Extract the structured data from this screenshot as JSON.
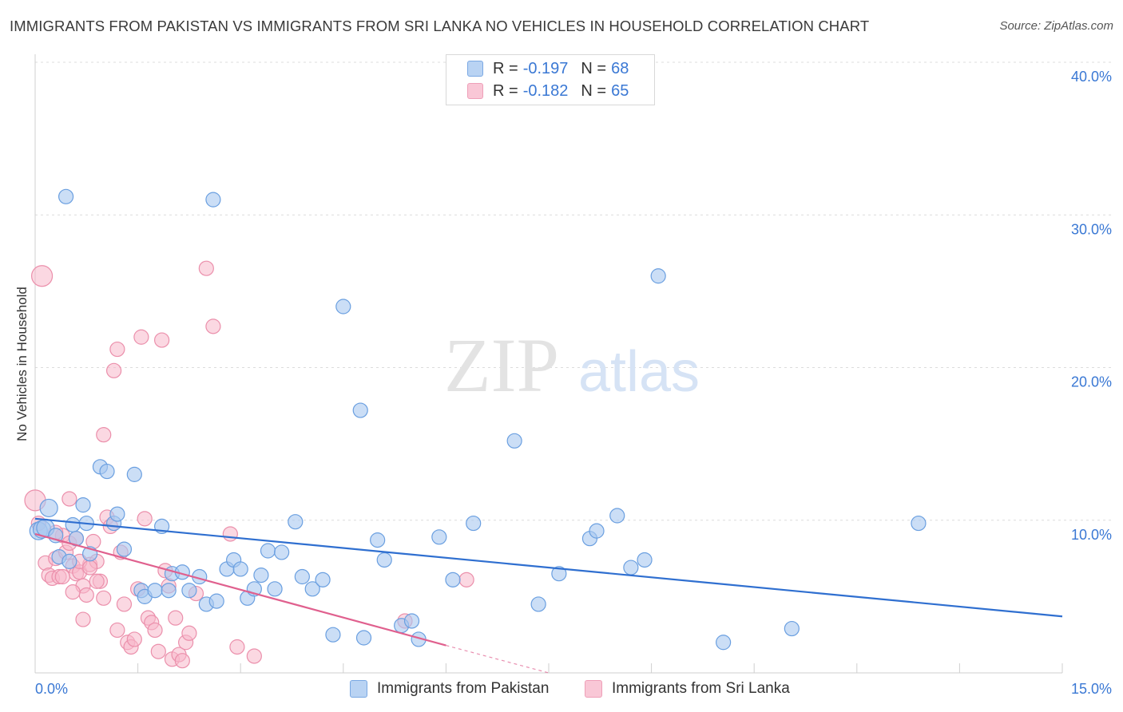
{
  "header": {
    "title": "IMMIGRANTS FROM PAKISTAN VS IMMIGRANTS FROM SRI LANKA NO VEHICLES IN HOUSEHOLD CORRELATION CHART",
    "source": "Source: ZipAtlas.com"
  },
  "watermark": {
    "zip": "ZIP",
    "atlas": "atlas"
  },
  "legend": {
    "rows": [
      {
        "r_label": "R =",
        "r_value": "-0.197",
        "n_label": "N =",
        "n_value": "68"
      },
      {
        "r_label": "R =",
        "r_value": "-0.182",
        "n_label": "N =",
        "n_value": "65"
      }
    ]
  },
  "bottom_legend": {
    "pakistan": "Immigrants from Pakistan",
    "srilanka": "Immigrants from Sri Lanka"
  },
  "chart_data": {
    "type": "scatter",
    "title": "IMMIGRANTS FROM PAKISTAN VS IMMIGRANTS FROM SRI LANKA NO VEHICLES IN HOUSEHOLD CORRELATION CHART",
    "xlabel": "",
    "ylabel": "No Vehicles in Household",
    "xlim": [
      0,
      15
    ],
    "ylim": [
      0,
      40
    ],
    "x_tick_labels": [
      "0.0%",
      "15.0%"
    ],
    "y_ticks": [
      10,
      20,
      30,
      40
    ],
    "y_tick_labels": [
      "10.0%",
      "20.0%",
      "30.0%",
      "40.0%"
    ],
    "grid": true,
    "colors": {
      "pakistan_fill": "#a9c8f0",
      "pakistan_stroke": "#6a9fe0",
      "pakistan_line": "#2f6fd0",
      "srilanka_fill": "#f7b8cb",
      "srilanka_stroke": "#eb8fab",
      "srilanka_line": "#e0608e",
      "axis_text": "#3a78d4"
    },
    "series": [
      {
        "name": "Immigrants from Pakistan",
        "r": -0.197,
        "n": 68,
        "trend": {
          "x0": 0,
          "y0": 10.1,
          "x1": 15,
          "y1": 3.7
        },
        "points": [
          [
            0.05,
            9.3
          ],
          [
            0.1,
            9.4
          ],
          [
            0.15,
            9.5
          ],
          [
            0.2,
            10.8
          ],
          [
            0.3,
            9.0
          ],
          [
            0.35,
            7.6
          ],
          [
            0.5,
            7.3
          ],
          [
            0.55,
            9.7
          ],
          [
            0.6,
            8.8
          ],
          [
            0.7,
            11.0
          ],
          [
            0.75,
            9.8
          ],
          [
            0.8,
            7.8
          ],
          [
            0.95,
            13.5
          ],
          [
            1.05,
            13.2
          ],
          [
            1.15,
            9.8
          ],
          [
            1.2,
            10.4
          ],
          [
            1.3,
            8.1
          ],
          [
            1.45,
            13.0
          ],
          [
            1.55,
            5.4
          ],
          [
            1.6,
            5.0
          ],
          [
            1.75,
            5.4
          ],
          [
            1.85,
            9.6
          ],
          [
            1.95,
            5.4
          ],
          [
            2.0,
            6.5
          ],
          [
            2.15,
            6.6
          ],
          [
            2.25,
            5.4
          ],
          [
            2.4,
            6.3
          ],
          [
            2.5,
            4.5
          ],
          [
            2.6,
            31.0
          ],
          [
            2.65,
            4.7
          ],
          [
            2.8,
            6.8
          ],
          [
            2.9,
            7.4
          ],
          [
            3.0,
            6.8
          ],
          [
            3.1,
            4.9
          ],
          [
            3.2,
            5.5
          ],
          [
            3.3,
            6.4
          ],
          [
            3.4,
            8.0
          ],
          [
            3.5,
            5.5
          ],
          [
            3.6,
            7.9
          ],
          [
            3.8,
            9.9
          ],
          [
            3.9,
            6.3
          ],
          [
            4.05,
            5.5
          ],
          [
            4.2,
            6.1
          ],
          [
            4.35,
            2.5
          ],
          [
            4.5,
            24.0
          ],
          [
            4.75,
            17.2
          ],
          [
            4.8,
            2.3
          ],
          [
            5.0,
            8.7
          ],
          [
            5.1,
            7.4
          ],
          [
            5.35,
            3.1
          ],
          [
            5.5,
            3.4
          ],
          [
            5.6,
            2.2
          ],
          [
            5.9,
            8.9
          ],
          [
            6.1,
            6.1
          ],
          [
            6.4,
            9.8
          ],
          [
            7.0,
            15.2
          ],
          [
            7.35,
            4.5
          ],
          [
            7.65,
            6.5
          ],
          [
            8.1,
            8.8
          ],
          [
            8.2,
            9.3
          ],
          [
            8.5,
            10.3
          ],
          [
            8.7,
            6.9
          ],
          [
            8.9,
            7.4
          ],
          [
            9.1,
            26.0
          ],
          [
            10.05,
            2.0
          ],
          [
            11.05,
            2.9
          ],
          [
            12.9,
            9.8
          ],
          [
            0.45,
            31.2
          ]
        ]
      },
      {
        "name": "Immigrants from Sri Lanka",
        "r": -0.182,
        "n": 65,
        "trend": {
          "x0": 0,
          "y0": 9.1,
          "x1": 6,
          "y1": 1.8,
          "dash_to_x": 7.5,
          "dash_to_y": 0
        },
        "points": [
          [
            0.0,
            11.3
          ],
          [
            0.05,
            9.8
          ],
          [
            0.1,
            26.0
          ],
          [
            0.15,
            7.2
          ],
          [
            0.2,
            6.4
          ],
          [
            0.25,
            6.2
          ],
          [
            0.3,
            7.5
          ],
          [
            0.35,
            6.3
          ],
          [
            0.4,
            9.0
          ],
          [
            0.45,
            7.9
          ],
          [
            0.5,
            11.4
          ],
          [
            0.5,
            8.5
          ],
          [
            0.55,
            7.0
          ],
          [
            0.6,
            6.5
          ],
          [
            0.6,
            8.8
          ],
          [
            0.65,
            6.6
          ],
          [
            0.7,
            5.7
          ],
          [
            0.7,
            3.5
          ],
          [
            0.75,
            5.1
          ],
          [
            0.8,
            7.1
          ],
          [
            0.85,
            8.6
          ],
          [
            0.9,
            7.3
          ],
          [
            0.95,
            6.0
          ],
          [
            1.0,
            15.6
          ],
          [
            1.05,
            10.2
          ],
          [
            1.1,
            9.6
          ],
          [
            1.15,
            19.8
          ],
          [
            1.2,
            21.2
          ],
          [
            1.25,
            7.9
          ],
          [
            1.3,
            4.5
          ],
          [
            1.35,
            2.0
          ],
          [
            1.4,
            1.7
          ],
          [
            1.45,
            2.2
          ],
          [
            1.5,
            5.5
          ],
          [
            1.55,
            22.0
          ],
          [
            1.6,
            10.1
          ],
          [
            1.65,
            3.6
          ],
          [
            1.7,
            3.3
          ],
          [
            1.75,
            2.8
          ],
          [
            1.8,
            1.4
          ],
          [
            1.85,
            21.8
          ],
          [
            1.9,
            6.7
          ],
          [
            1.95,
            5.7
          ],
          [
            2.0,
            0.9
          ],
          [
            2.05,
            3.6
          ],
          [
            2.1,
            1.2
          ],
          [
            2.15,
            0.8
          ],
          [
            2.2,
            2.0
          ],
          [
            2.25,
            2.6
          ],
          [
            2.35,
            5.2
          ],
          [
            2.5,
            26.5
          ],
          [
            2.6,
            22.7
          ],
          [
            2.85,
            9.1
          ],
          [
            2.95,
            1.7
          ],
          [
            3.2,
            1.1
          ],
          [
            5.4,
            3.4
          ],
          [
            6.3,
            6.1
          ],
          [
            0.3,
            9.2
          ],
          [
            0.4,
            6.3
          ],
          [
            0.55,
            5.3
          ],
          [
            0.65,
            7.3
          ],
          [
            0.8,
            6.9
          ],
          [
            0.9,
            6.0
          ],
          [
            1.0,
            4.9
          ],
          [
            1.2,
            2.8
          ]
        ]
      }
    ]
  }
}
